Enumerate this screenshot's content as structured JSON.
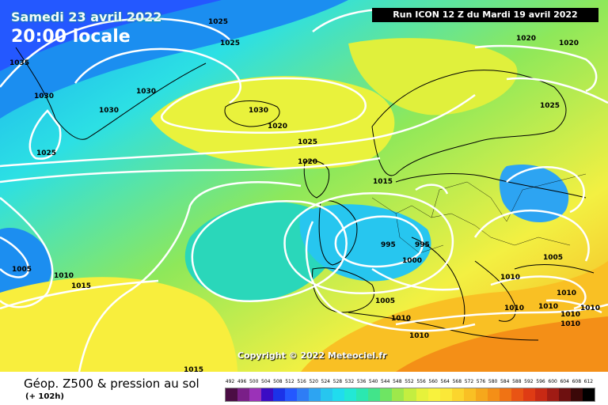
{
  "header": {
    "date": "Samedi 23 avril 2022",
    "time": "20:00 locale",
    "run": "Run ICON 12 Z du Mardi 19 avril 2022"
  },
  "copyright": "Copyright © 2022 Meteociel.fr",
  "footer": {
    "product": "Géop. Z500 & pression au sol",
    "lead": "(+ 102h)"
  },
  "isobar_labels": [
    "1035",
    "1030",
    "1030",
    "1030",
    "1025",
    "1025",
    "1025",
    "1020",
    "1030",
    "1025",
    "1020",
    "1015",
    "1005",
    "1010",
    "1015",
    "995",
    "995",
    "1000",
    "1005",
    "1010",
    "1010",
    "1015",
    "1020",
    "1020",
    "1025",
    "1005",
    "1010",
    "1010",
    "1010",
    "1010",
    "1010",
    "1010",
    "1010"
  ],
  "legend": {
    "values": [
      "492",
      "496",
      "500",
      "504",
      "508",
      "512",
      "516",
      "520",
      "524",
      "528",
      "532",
      "536",
      "540",
      "544",
      "548",
      "552",
      "556",
      "560",
      "564",
      "568",
      "572",
      "576",
      "580",
      "584",
      "588",
      "592",
      "596",
      "600",
      "604",
      "608",
      "612"
    ],
    "colors": [
      "#4b0d44",
      "#7a1f88",
      "#9b32b8",
      "#3b0cc4",
      "#1b33e8",
      "#2458ff",
      "#2e7df5",
      "#2da4f2",
      "#27c6ef",
      "#20dcee",
      "#22e8d5",
      "#2be8b0",
      "#42e48a",
      "#6ee563",
      "#9ee84b",
      "#c4ee40",
      "#e6f23b",
      "#f8f23d",
      "#fbe838",
      "#fbd52d",
      "#f9c024",
      "#f6a81c",
      "#f48f17",
      "#f07314",
      "#e95414",
      "#df3b14",
      "#c82914",
      "#a01b14",
      "#6e1010",
      "#3b0808",
      "#000000"
    ]
  }
}
